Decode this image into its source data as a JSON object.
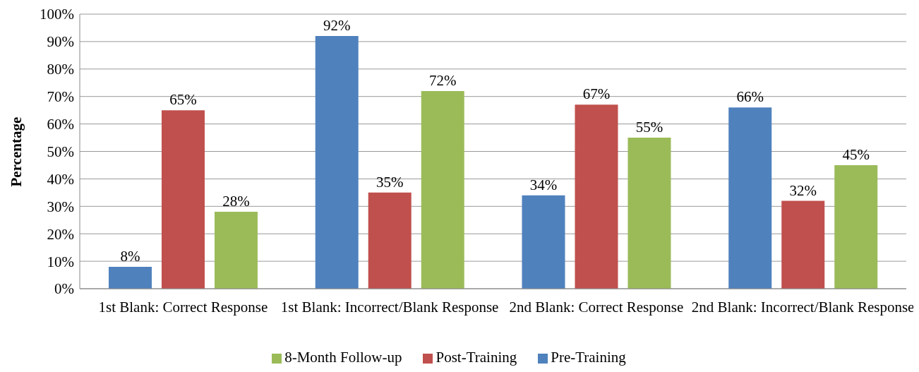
{
  "chart_data": {
    "type": "bar",
    "ylabel": "Percentage",
    "categories": [
      "1st Blank: Correct Response",
      "1st Blank: Incorrect/Blank Response",
      "2nd Blank: Correct Response",
      "2nd Blank: Incorrect/Blank Response"
    ],
    "series": [
      {
        "name": "Pre-Training",
        "color": "#4f81bd",
        "values": [
          8,
          92,
          34,
          66
        ],
        "value_labels": [
          "8%",
          "92%",
          "34%",
          "66%"
        ]
      },
      {
        "name": "Post-Training",
        "color": "#c0504d",
        "values": [
          65,
          35,
          67,
          32
        ],
        "value_labels": [
          "65%",
          "35%",
          "67%",
          "32%"
        ]
      },
      {
        "name": "8-Month Follow-up",
        "color": "#9bbb59",
        "values": [
          28,
          72,
          55,
          45
        ],
        "value_labels": [
          "28%",
          "72%",
          "55%",
          "45%"
        ]
      }
    ],
    "ylim": [
      0,
      100
    ],
    "yticks": [
      {
        "value": 0,
        "label": "0%"
      },
      {
        "value": 10,
        "label": "10%"
      },
      {
        "value": 20,
        "label": "20%"
      },
      {
        "value": 30,
        "label": "30%"
      },
      {
        "value": 40,
        "label": "40%"
      },
      {
        "value": 50,
        "label": "50%"
      },
      {
        "value": 60,
        "label": "60%"
      },
      {
        "value": 70,
        "label": "70%"
      },
      {
        "value": 80,
        "label": "80%"
      },
      {
        "value": 90,
        "label": "90%"
      },
      {
        "value": 100,
        "label": "100%"
      }
    ],
    "grid": "y",
    "legend": "bottom"
  }
}
